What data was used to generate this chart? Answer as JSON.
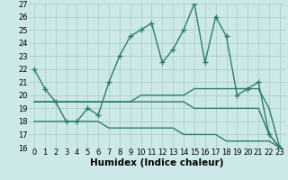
{
  "x": [
    0,
    1,
    2,
    3,
    4,
    5,
    6,
    7,
    8,
    9,
    10,
    11,
    12,
    13,
    14,
    15,
    16,
    17,
    18,
    19,
    20,
    21,
    22,
    23
  ],
  "line1": [
    22,
    20.5,
    19.5,
    18,
    18,
    19,
    18.5,
    21,
    23,
    24.5,
    25,
    25.5,
    22.5,
    23.5,
    25,
    27,
    22.5,
    26,
    24.5,
    20,
    20.5,
    21,
    17,
    16
  ],
  "line2": [
    19.5,
    19.5,
    19.5,
    19.5,
    19.5,
    19.5,
    19.5,
    19.5,
    19.5,
    19.5,
    20,
    20,
    20,
    20,
    20,
    20.5,
    20.5,
    20.5,
    20.5,
    20.5,
    20.5,
    20.5,
    19,
    16
  ],
  "line3": [
    19.5,
    19.5,
    19.5,
    19.5,
    19.5,
    19.5,
    19.5,
    19.5,
    19.5,
    19.5,
    19.5,
    19.5,
    19.5,
    19.5,
    19.5,
    19,
    19,
    19,
    19,
    19,
    19,
    19,
    17,
    16
  ],
  "line4": [
    18,
    18,
    18,
    18,
    18,
    18,
    18,
    17.5,
    17.5,
    17.5,
    17.5,
    17.5,
    17.5,
    17.5,
    17,
    17,
    17,
    17,
    16.5,
    16.5,
    16.5,
    16.5,
    16.5,
    16
  ],
  "color": "#2d7d6e",
  "bg_color": "#cce8e8",
  "grid_color": "#aacfcf",
  "xlabel": "Humidex (Indice chaleur)",
  "ylim": [
    16,
    27
  ],
  "xlim": [
    -0.5,
    23.5
  ],
  "yticks": [
    16,
    17,
    18,
    19,
    20,
    21,
    22,
    23,
    24,
    25,
    26,
    27
  ],
  "xticks": [
    0,
    1,
    2,
    3,
    4,
    5,
    6,
    7,
    8,
    9,
    10,
    11,
    12,
    13,
    14,
    15,
    16,
    17,
    18,
    19,
    20,
    21,
    22,
    23
  ],
  "xtick_labels": [
    "0",
    "1",
    "2",
    "3",
    "4",
    "5",
    "6",
    "7",
    "8",
    "9",
    "10",
    "11",
    "12",
    "13",
    "14",
    "15",
    "16",
    "17",
    "18",
    "19",
    "20",
    "21",
    "22",
    "23"
  ],
  "marker": "+",
  "markersize": 4,
  "linewidth": 1.0,
  "tick_fontsize": 6.0,
  "xlabel_fontsize": 7.5
}
